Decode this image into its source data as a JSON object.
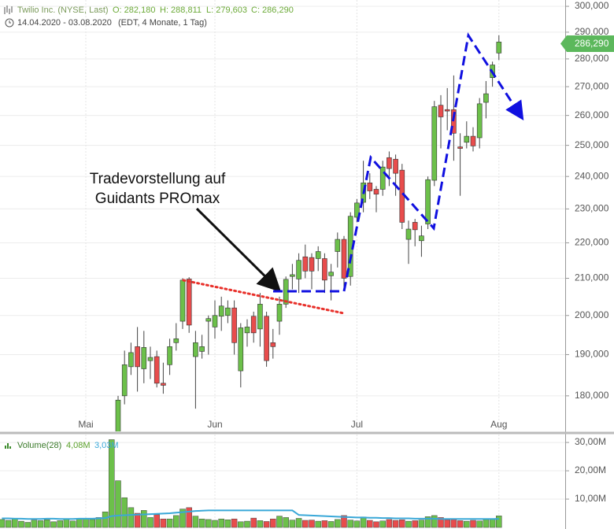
{
  "header": {
    "title": "Twilio Inc. (NYSE, Last)",
    "open": "O: 282,180",
    "high": "H: 288,811",
    "low": "L: 279,603",
    "close": "C: 286,290",
    "range": "14.04.2020 - 03.08.2020",
    "detail": "(EDT, 4 Monate, 1 Tag)"
  },
  "chart_data": [
    {
      "type": "candlestick",
      "log_scale": true,
      "grid": true,
      "up_color": "#6cc04a",
      "down_color": "#e84c4c",
      "categories": [
        null,
        null,
        null,
        null,
        null,
        null,
        null,
        null,
        null,
        null,
        null,
        null,
        null,
        "Mai",
        null,
        null,
        null,
        null,
        null,
        null,
        null,
        null,
        null,
        null,
        null,
        null,
        null,
        null,
        null,
        null,
        null,
        null,
        null,
        "Jun",
        null,
        null,
        null,
        null,
        null,
        null,
        null,
        null,
        null,
        null,
        null,
        null,
        null,
        null,
        null,
        null,
        null,
        null,
        null,
        null,
        null,
        "Jul",
        null,
        null,
        null,
        null,
        null,
        null,
        null,
        null,
        null,
        null,
        null,
        null,
        null,
        null,
        null,
        null,
        null,
        null,
        null,
        null,
        null,
        "Aug"
      ],
      "open": [
        null,
        null,
        null,
        null,
        null,
        null,
        null,
        null,
        null,
        null,
        null,
        null,
        null,
        null,
        null,
        null,
        null,
        null,
        171,
        180,
        187,
        192,
        186.5,
        188.5,
        189.5,
        183,
        187.5,
        193,
        198.5,
        209.8,
        189.5,
        190.8,
        198.5,
        197,
        199.8,
        200,
        202,
        186,
        195.5,
        199.8,
        196.5,
        199.8,
        193,
        198.5,
        203,
        210.5,
        209.8,
        216,
        215.8,
        215.5,
        215.5,
        210.7,
        217.5,
        221,
        210.5,
        227.5,
        232,
        238,
        236,
        236,
        246,
        245.5,
        242,
        221,
        226,
        220.6,
        225.5,
        238.8,
        263.5,
        262,
        262,
        249.5,
        251,
        253,
        252.5,
        264.5,
        273.2,
        282.18
      ],
      "high": [
        null,
        null,
        null,
        null,
        null,
        null,
        null,
        null,
        null,
        null,
        null,
        null,
        null,
        null,
        null,
        null,
        null,
        null,
        180,
        191,
        193,
        197,
        196,
        192,
        191,
        188,
        194,
        198,
        210,
        210.3,
        196,
        195,
        200,
        204,
        205,
        204,
        204,
        198,
        199,
        201,
        206,
        201,
        196.5,
        205,
        210.5,
        214,
        217,
        219.5,
        217,
        219,
        217,
        214,
        223,
        222,
        229,
        233,
        245,
        241,
        237,
        245,
        248,
        247,
        244,
        226.5,
        227,
        225,
        240,
        265,
        267,
        269.5,
        274,
        254,
        258,
        256,
        266,
        272,
        279,
        288.811
      ],
      "low": [
        null,
        null,
        null,
        null,
        null,
        null,
        null,
        null,
        null,
        null,
        null,
        null,
        null,
        null,
        null,
        null,
        null,
        null,
        170,
        178,
        185,
        181,
        183,
        184,
        182,
        180.5,
        185,
        191,
        196.5,
        195.5,
        177,
        189,
        190,
        194,
        196,
        198,
        190,
        182,
        192,
        193,
        192,
        187,
        189,
        195,
        202,
        207,
        206,
        210,
        207,
        212,
        206,
        204,
        213,
        207,
        208,
        226,
        229,
        233,
        229,
        234,
        237,
        234,
        224,
        214,
        219,
        216,
        224,
        237,
        249,
        255,
        245,
        234,
        249,
        248,
        249,
        259,
        270,
        279.603
      ],
      "close": [
        null,
        null,
        null,
        null,
        null,
        null,
        null,
        null,
        null,
        null,
        null,
        null,
        null,
        null,
        null,
        null,
        null,
        null,
        179,
        187.5,
        190.5,
        187,
        191.8,
        189.3,
        183,
        182.5,
        192,
        194,
        209.5,
        197.5,
        193,
        192,
        199.2,
        200,
        202.5,
        202,
        193,
        196.8,
        197,
        195.5,
        203,
        188.5,
        192,
        203,
        209.7,
        211,
        215,
        212,
        212,
        217.5,
        209.5,
        211.7,
        221,
        210,
        227.8,
        231.8,
        238,
        235.5,
        234.5,
        243,
        242.5,
        241,
        226,
        224,
        223.8,
        222,
        239,
        263,
        259.5,
        261.5,
        254,
        249,
        253,
        249.8,
        264,
        267.5,
        277.8,
        286.29
      ],
      "ylim": [
        171.8,
        302.5
      ],
      "yticks": [
        {
          "value": 180,
          "label": "180,000"
        },
        {
          "value": 190,
          "label": "190,000"
        },
        {
          "value": 200,
          "label": "200,000"
        },
        {
          "value": 210,
          "label": "210,000"
        },
        {
          "value": 220,
          "label": "220,000"
        },
        {
          "value": 230,
          "label": "230,000"
        },
        {
          "value": 240,
          "label": "240,000"
        },
        {
          "value": 250,
          "label": "250,000"
        },
        {
          "value": 260,
          "label": "260,000"
        },
        {
          "value": 270,
          "label": "270,000"
        },
        {
          "value": 280,
          "label": "280,000"
        },
        {
          "value": 290,
          "label": "290,000"
        },
        {
          "value": 300,
          "label": "300,000"
        }
      ],
      "price_tag": "286,290",
      "annotations": [
        "Tradevorstellung auf",
        "Guidants PROmax"
      ]
    },
    {
      "type": "bar",
      "title": "Volume(28)",
      "ylim": [
        0,
        32.8
      ],
      "yticks": [
        {
          "value": 10,
          "label": "10,00M"
        },
        {
          "value": 20,
          "label": "20,00M"
        },
        {
          "value": 30,
          "label": "30,00M"
        }
      ],
      "series": [
        {
          "color": "#6cc04a",
          "last_label": "4,08M",
          "values": [
            2.8,
            2.5,
            3,
            2.2,
            1.8,
            2.6,
            2.4,
            2.7,
            2,
            2.4,
            2.9,
            2.3,
            3.2,
            3,
            2.8,
            3.5,
            5.5,
            31,
            16.5,
            10.5,
            7,
            5,
            6,
            3.5,
            4.5,
            3,
            3,
            4.2,
            6.5,
            7,
            4,
            3,
            2.8,
            2.5,
            3,
            2.7,
            3,
            2,
            2.2,
            3.3,
            2.4,
            2.1,
            3,
            4,
            3.5,
            2.6,
            3.2,
            2.5,
            2.6,
            2.2,
            2.4,
            2.1,
            2.8,
            4.2,
            2.6,
            2.3,
            3.7,
            2.5,
            2,
            2.3,
            2.8,
            2.5,
            2.7,
            2.2,
            2.4,
            2.6,
            3.8,
            4.2,
            3.5,
            2.7,
            2.8,
            2.4,
            2.2,
            2.5,
            2.3,
            2.8,
            3,
            4.08
          ]
        },
        {
          "type": "line",
          "color": "#3aa8d8",
          "last_label": "3,03M",
          "values": [
            3.2,
            3.2,
            3.1,
            3.1,
            3.0,
            3.0,
            3.0,
            3.1,
            3.1,
            3.0,
            3.0,
            3.0,
            3.1,
            3.1,
            3.1,
            3.2,
            3.3,
            4.0,
            4.2,
            4.3,
            4.4,
            4.5,
            4.6,
            4.7,
            4.8,
            4.9,
            5.0,
            5.2,
            5.4,
            5.6,
            5.8,
            5.9,
            6.0,
            6.0,
            6.0,
            6.0,
            6.0,
            6.0,
            6.0,
            6.0,
            6.0,
            6.0,
            6.0,
            6.0,
            6.0,
            6.0,
            4.4,
            4.3,
            4.2,
            4.1,
            4.0,
            3.9,
            3.8,
            3.7,
            3.6,
            3.5,
            3.5,
            3.4,
            3.4,
            3.3,
            3.3,
            3.2,
            3.2,
            3.2,
            3.1,
            3.1,
            3.1,
            3.1,
            3.0,
            3.0,
            3.0,
            3.0,
            3.0,
            3.0,
            3.0,
            3.0,
            3.0,
            3.03
          ]
        }
      ]
    }
  ]
}
